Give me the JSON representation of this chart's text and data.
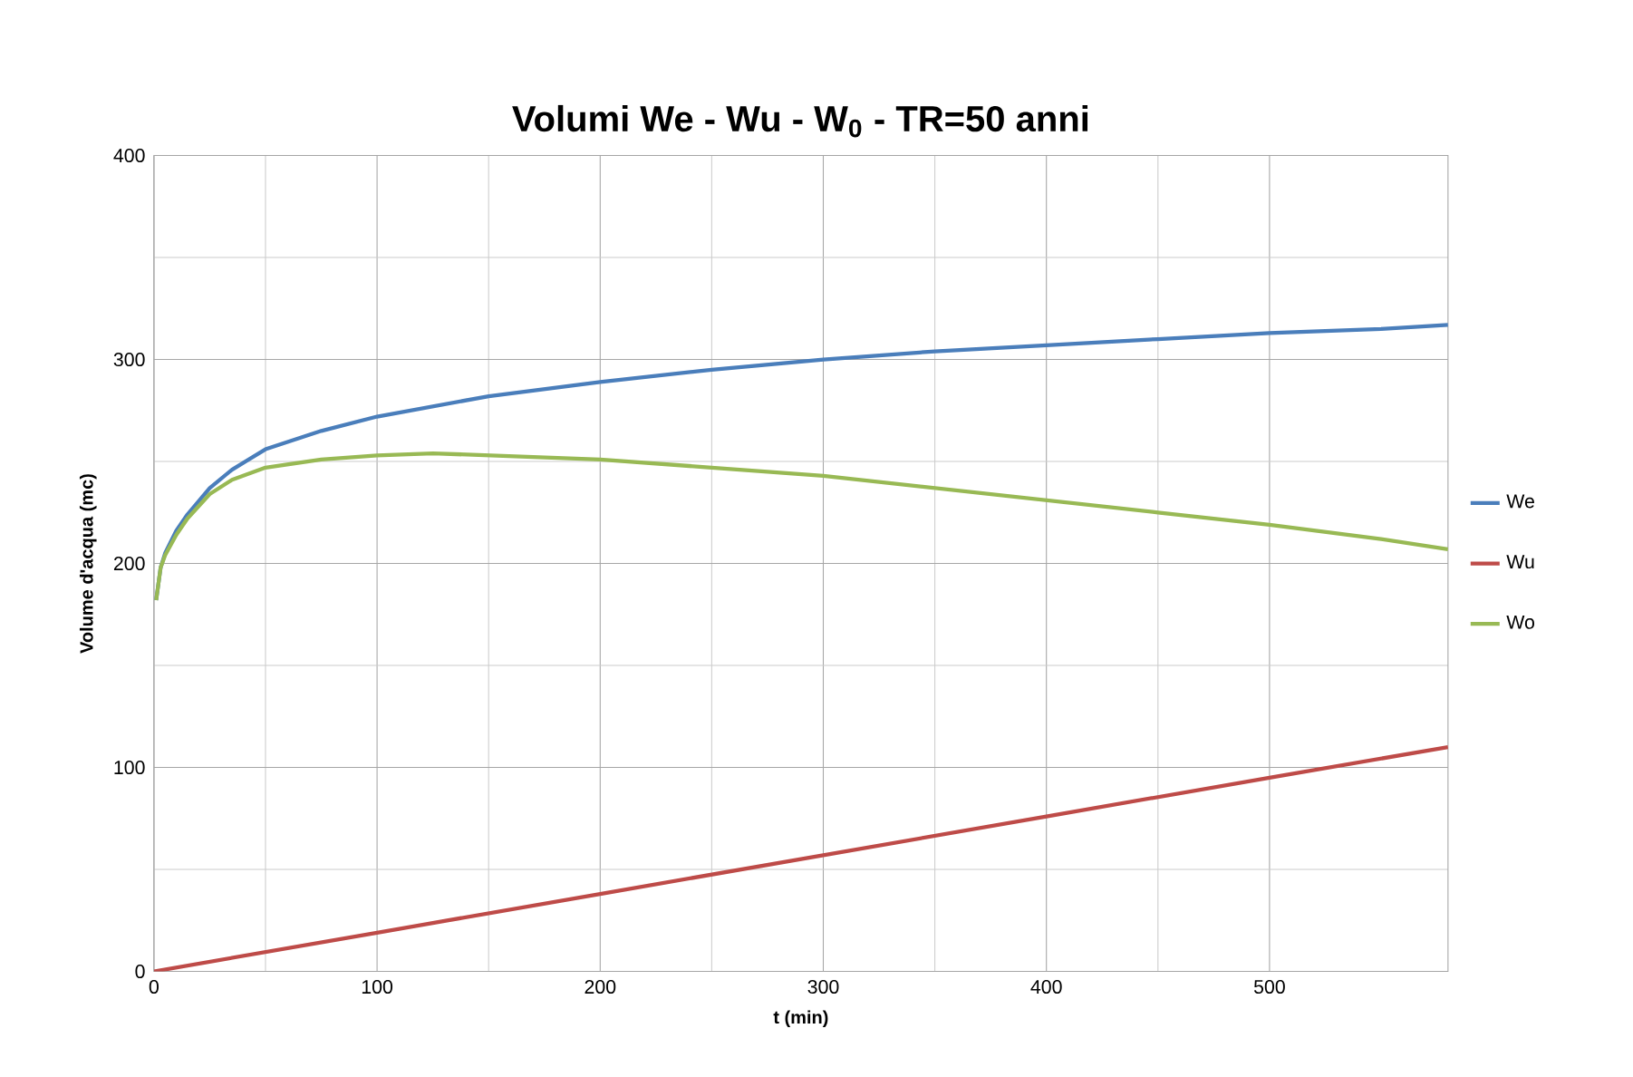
{
  "chart_data": {
    "type": "line",
    "title": "Volumi We - Wu - W$_{0}$ - TR=50 anni",
    "xlabel": "t (min)",
    "ylabel": "Volume d'acqua (mc)",
    "xlim": [
      0,
      580
    ],
    "xticks": [
      0,
      100,
      200,
      300,
      400,
      500
    ],
    "ylim": [
      0,
      400
    ],
    "yticks": [
      0,
      100,
      200,
      300,
      400
    ],
    "grid": true,
    "legend": "right",
    "marker": "none",
    "series": [
      {
        "name": "We",
        "color": "#4a7ebb",
        "x": [
          1,
          3,
          5,
          10,
          15,
          25,
          35,
          50,
          75,
          100,
          150,
          200,
          250,
          300,
          350,
          400,
          450,
          500,
          550,
          580
        ],
        "values": [
          182,
          198,
          205,
          216,
          224,
          237,
          246,
          256,
          265,
          272,
          282,
          289,
          295,
          300,
          304,
          307,
          310,
          313,
          315,
          317
        ]
      },
      {
        "name": "Wu",
        "color": "#be4b48",
        "x": [
          0,
          100,
          200,
          300,
          400,
          500,
          580
        ],
        "values": [
          0,
          19,
          38,
          57,
          76,
          95,
          110
        ]
      },
      {
        "name": "Wo",
        "color": "#98b954",
        "x": [
          1,
          3,
          5,
          10,
          15,
          25,
          35,
          50,
          75,
          100,
          125,
          150,
          200,
          250,
          300,
          350,
          400,
          450,
          500,
          550,
          580
        ],
        "values": [
          182,
          198,
          204,
          214,
          222,
          234,
          241,
          247,
          251,
          253,
          254,
          253,
          251,
          247,
          243,
          237,
          231,
          225,
          219,
          212,
          207
        ]
      }
    ]
  }
}
